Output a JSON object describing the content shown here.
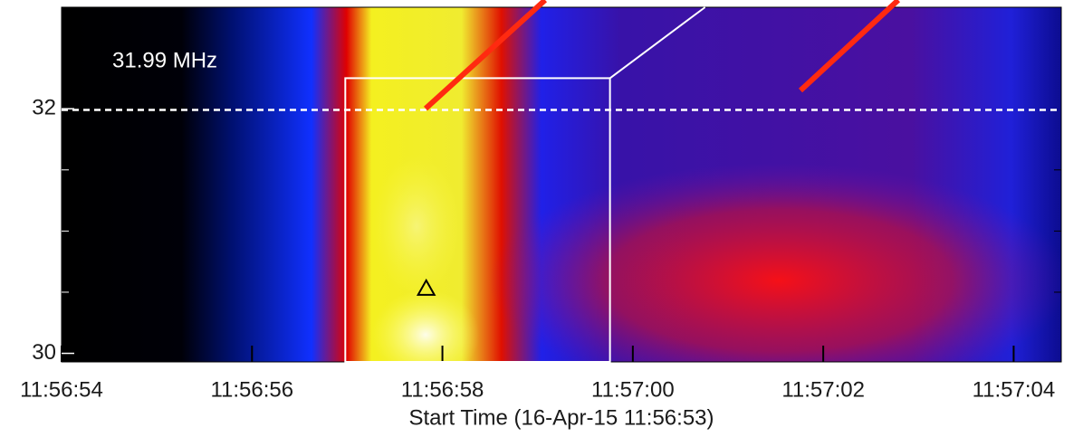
{
  "chart_data": {
    "type": "spectrogram",
    "xlabel": "Start Time (16-Apr-15 11:56:53)",
    "xlim": [
      1,
      11.5
    ],
    "xticks": [
      {
        "value": 1,
        "label": "11:56:54"
      },
      {
        "value": 3,
        "label": "11:56:56"
      },
      {
        "value": 5,
        "label": "11:56:58"
      },
      {
        "value": 7,
        "label": "11:57:00"
      },
      {
        "value": 9,
        "label": "11:57:02"
      },
      {
        "value": 11,
        "label": "11:57:04"
      }
    ],
    "ylim": [
      29.93,
      32.83
    ],
    "yticks": [
      30,
      32
    ],
    "yminorticks": [
      30.5,
      31,
      31.5
    ],
    "reference_line": {
      "value": 31.99,
      "label": "31.99 MHz"
    },
    "box": {
      "x": [
        3.98,
        6.76
      ],
      "y": 32.25
    },
    "marker": {
      "x": 4.83,
      "y": 30.53
    }
  }
}
